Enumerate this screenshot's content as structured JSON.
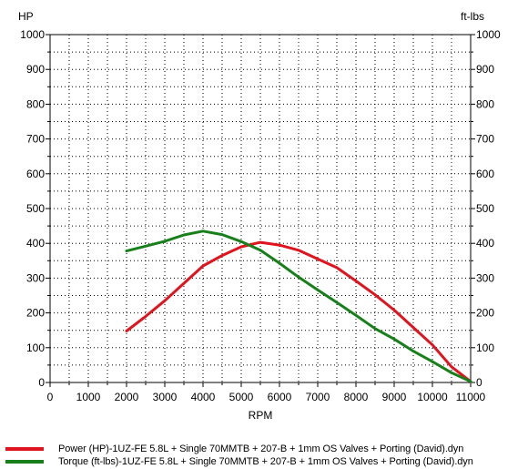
{
  "chart_data": {
    "type": "line",
    "title": "",
    "xlabel": "RPM",
    "ylabel_left": "HP",
    "ylabel_right": "ft-lbs",
    "xlim": [
      0,
      11000
    ],
    "ylim": [
      0,
      1000
    ],
    "x_ticks": [
      "0",
      "1000",
      "2000",
      "3000",
      "4000",
      "5000",
      "6000",
      "7000",
      "8000",
      "9000",
      "10000",
      "11000"
    ],
    "y_ticks": [
      "0",
      "100",
      "200",
      "300",
      "400",
      "500",
      "600",
      "700",
      "800",
      "900",
      "1000"
    ],
    "grid": true,
    "legend_position": "bottom",
    "series": [
      {
        "name": "Power (HP)-1UZ-FE 5.8L + Single 70MMTB + 207-B + 1mm OS Valves + Porting (David).dyn",
        "color": "#e0141e",
        "x": [
          2000,
          2500,
          3000,
          3500,
          4000,
          4500,
          5000,
          5500,
          6000,
          6500,
          7000,
          7500,
          8000,
          8500,
          9000,
          9500,
          10000,
          10500,
          11000
        ],
        "y": [
          148,
          190,
          235,
          285,
          335,
          365,
          390,
          403,
          395,
          380,
          355,
          330,
          292,
          252,
          208,
          158,
          108,
          45,
          3
        ]
      },
      {
        "name": "Torque (ft-lbs)-1UZ-FE 5.8L + Single 70MMTB + 207-B + 1mm OS Valves + Porting (David).dyn",
        "color": "#18801a",
        "x": [
          2000,
          2500,
          3000,
          3500,
          4000,
          4500,
          5000,
          5500,
          6000,
          6500,
          7000,
          7500,
          8000,
          8500,
          9000,
          9500,
          10000,
          10500,
          11000
        ],
        "y": [
          378,
          392,
          406,
          424,
          435,
          425,
          405,
          380,
          343,
          303,
          266,
          230,
          193,
          155,
          125,
          90,
          60,
          28,
          3
        ]
      }
    ]
  }
}
